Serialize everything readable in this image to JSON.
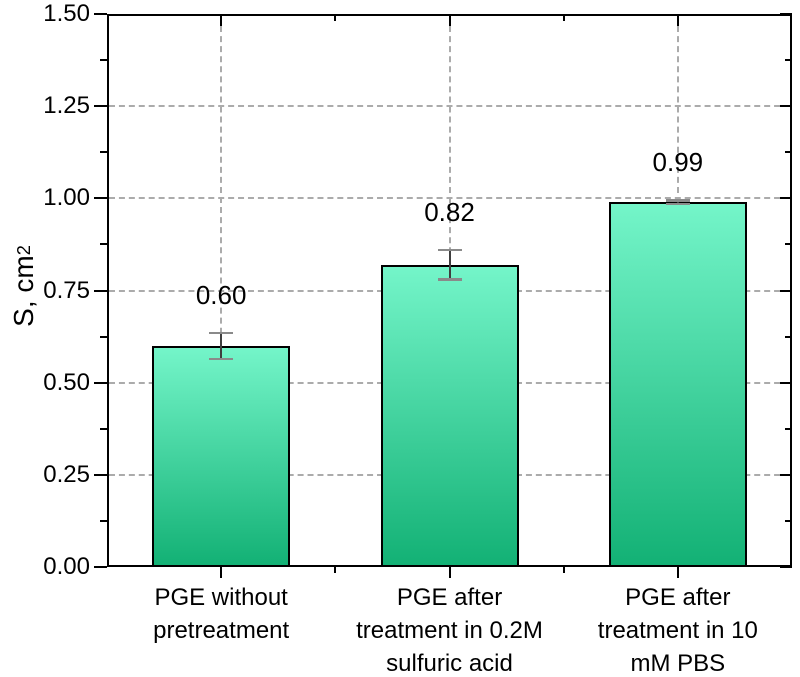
{
  "chart_data": {
    "type": "bar",
    "title": "",
    "categories": [
      [
        "PGE without",
        "pretreatment"
      ],
      [
        "PGE after",
        "treatment in 0.2M",
        "sulfuric acid"
      ],
      [
        "PGE after",
        "treatment in 10",
        "mM PBS"
      ]
    ],
    "values": [
      0.6,
      0.82,
      0.99
    ],
    "errors": [
      0.035,
      0.04,
      0.005
    ],
    "value_labels": [
      "0.60",
      "0.82",
      "0.99"
    ],
    "ylabel_main": "S, cm",
    "ylabel_sup": "2",
    "ylim": [
      0,
      1.5
    ],
    "yticks": [
      "0.00",
      "0.25",
      "0.50",
      "0.75",
      "1.00",
      "1.25",
      "1.50"
    ],
    "ytick_values": [
      0,
      0.25,
      0.5,
      0.75,
      1.0,
      1.25,
      1.5
    ],
    "yminor_values": [
      0.125,
      0.375,
      0.625,
      0.875,
      1.125,
      1.375
    ],
    "grid": true,
    "legend": "none",
    "colors": {
      "bar_gradient_top": "#74f5c9",
      "bar_gradient_bottom": "#13b175",
      "bar_border": "#000000",
      "grid": "#ababab",
      "axis": "#000000",
      "error_line": "#3f3f3f",
      "error_cap": "#8a8a8a",
      "text": "#000000",
      "background": "#ffffff"
    }
  }
}
